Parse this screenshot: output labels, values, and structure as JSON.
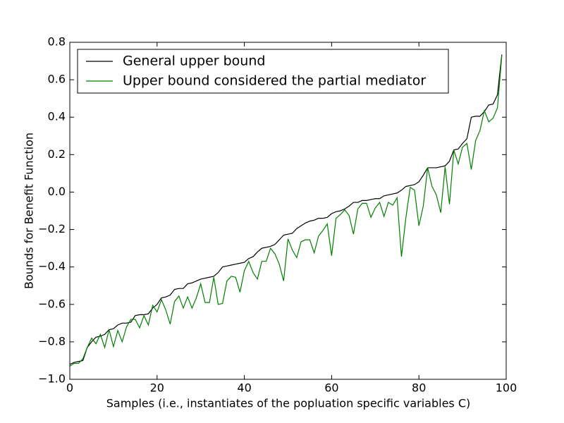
{
  "chart_data": {
    "type": "line",
    "xlabel": "Samples (i.e., instantiates of the popluation specific variables C)",
    "ylabel": "Bounds for Benefit Function",
    "xlim": [
      0,
      100
    ],
    "ylim": [
      -1.0,
      0.8
    ],
    "xticks": [
      0,
      20,
      40,
      60,
      80,
      100
    ],
    "yticks": [
      {
        "value": -1.0,
        "label": "−1.0"
      },
      {
        "value": -0.8,
        "label": "−0.8"
      },
      {
        "value": -0.6,
        "label": "−0.6"
      },
      {
        "value": -0.4,
        "label": "−0.4"
      },
      {
        "value": -0.2,
        "label": "−0.2"
      },
      {
        "value": 0,
        "label": "0.0"
      },
      0.2,
      0.4,
      0.6,
      0.8
    ],
    "legend": "upper left",
    "x": [
      0,
      1,
      2,
      3,
      4,
      5,
      6,
      7,
      8,
      9,
      10,
      11,
      12,
      13,
      14,
      15,
      16,
      17,
      18,
      19,
      20,
      21,
      22,
      23,
      24,
      25,
      26,
      27,
      28,
      29,
      30,
      31,
      32,
      33,
      34,
      35,
      36,
      37,
      38,
      39,
      40,
      41,
      42,
      43,
      44,
      45,
      46,
      47,
      48,
      49,
      50,
      51,
      52,
      53,
      54,
      55,
      56,
      57,
      58,
      59,
      60,
      61,
      62,
      63,
      64,
      65,
      66,
      67,
      68,
      69,
      70,
      71,
      72,
      73,
      74,
      75,
      76,
      77,
      78,
      79,
      80,
      81,
      82,
      83,
      84,
      85,
      86,
      87,
      88,
      89,
      90,
      91,
      92,
      93,
      94,
      95,
      96,
      97,
      98,
      99
    ],
    "series": [
      {
        "name": "General upper bound",
        "color": "#000000",
        "values": [
          -0.92,
          -0.91,
          -0.905,
          -0.9,
          -0.83,
          -0.8,
          -0.775,
          -0.77,
          -0.76,
          -0.735,
          -0.73,
          -0.71,
          -0.7,
          -0.7,
          -0.695,
          -0.66,
          -0.655,
          -0.655,
          -0.65,
          -0.62,
          -0.6,
          -0.565,
          -0.56,
          -0.55,
          -0.52,
          -0.515,
          -0.515,
          -0.49,
          -0.485,
          -0.475,
          -0.465,
          -0.46,
          -0.455,
          -0.45,
          -0.43,
          -0.4,
          -0.395,
          -0.39,
          -0.385,
          -0.38,
          -0.375,
          -0.355,
          -0.345,
          -0.32,
          -0.3,
          -0.295,
          -0.29,
          -0.28,
          -0.255,
          -0.23,
          -0.225,
          -0.22,
          -0.195,
          -0.18,
          -0.165,
          -0.155,
          -0.15,
          -0.14,
          -0.14,
          -0.135,
          -0.115,
          -0.105,
          -0.1,
          -0.09,
          -0.075,
          -0.055,
          -0.055,
          -0.045,
          -0.045,
          -0.04,
          -0.035,
          -0.035,
          -0.02,
          -0.015,
          -0.01,
          -0.005,
          0.01,
          0.03,
          0.035,
          0.04,
          0.055,
          0.09,
          0.13,
          0.13,
          0.13,
          0.135,
          0.14,
          0.165,
          0.225,
          0.23,
          0.26,
          0.285,
          0.4,
          0.405,
          0.405,
          0.43,
          0.465,
          0.47,
          0.52,
          0.735
        ]
      },
      {
        "name": "Upper bound considered the partial mediator",
        "color": "#008000",
        "values": [
          -0.93,
          -0.915,
          -0.915,
          -0.89,
          -0.83,
          -0.78,
          -0.81,
          -0.76,
          -0.83,
          -0.735,
          -0.825,
          -0.74,
          -0.8,
          -0.72,
          -0.68,
          -0.68,
          -0.725,
          -0.66,
          -0.71,
          -0.605,
          -0.64,
          -0.575,
          -0.63,
          -0.705,
          -0.585,
          -0.555,
          -0.62,
          -0.56,
          -0.62,
          -0.565,
          -0.49,
          -0.59,
          -0.59,
          -0.455,
          -0.6,
          -0.595,
          -0.475,
          -0.45,
          -0.455,
          -0.535,
          -0.42,
          -0.37,
          -0.43,
          -0.465,
          -0.37,
          -0.37,
          -0.3,
          -0.33,
          -0.385,
          -0.475,
          -0.25,
          -0.31,
          -0.35,
          -0.265,
          -0.255,
          -0.255,
          -0.325,
          -0.235,
          -0.205,
          -0.17,
          -0.34,
          -0.14,
          -0.12,
          -0.095,
          -0.125,
          -0.225,
          -0.09,
          -0.06,
          -0.06,
          -0.135,
          -0.085,
          -0.055,
          -0.13,
          -0.055,
          -0.07,
          -0.03,
          -0.345,
          -0.14,
          0.025,
          0.01,
          -0.18,
          -0.075,
          0.13,
          0.03,
          -0.015,
          -0.11,
          0.135,
          -0.065,
          0.225,
          0.15,
          0.24,
          0.26,
          0.12,
          0.275,
          0.33,
          0.435,
          0.375,
          0.395,
          0.45,
          0.73
        ]
      }
    ]
  }
}
